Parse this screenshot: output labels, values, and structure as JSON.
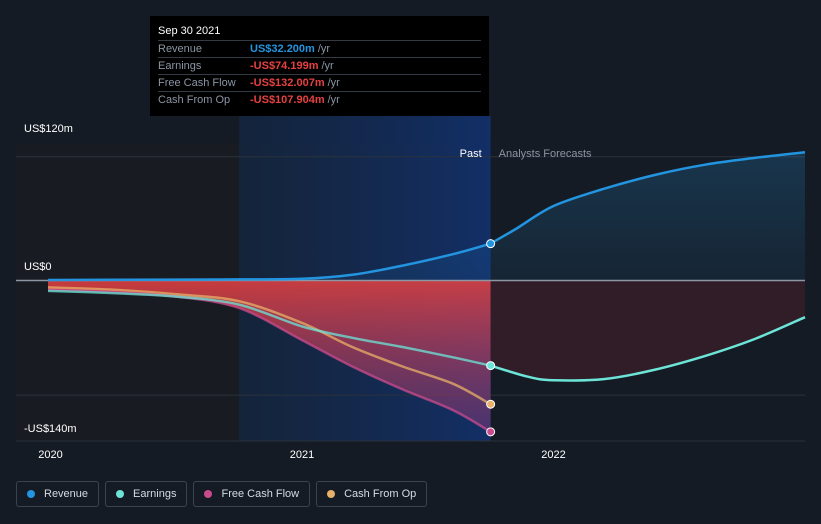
{
  "tooltip": {
    "date": "Sep 30 2021",
    "rows": [
      {
        "label": "Revenue",
        "value": "US$32.200m",
        "unit": "/yr",
        "color": "#2394df"
      },
      {
        "label": "Earnings",
        "value": "-US$74.199m",
        "unit": "/yr",
        "color": "#e64141"
      },
      {
        "label": "Free Cash Flow",
        "value": "-US$132.007m",
        "unit": "/yr",
        "color": "#e64141"
      },
      {
        "label": "Cash From Op",
        "value": "-US$107.904m",
        "unit": "/yr",
        "color": "#e64141"
      }
    ]
  },
  "axis": {
    "top_label": "US$120m",
    "zero_label": "US$0",
    "bottom_label": "-US$140m"
  },
  "sections": {
    "past": "Past",
    "forecast": "Analysts Forecasts"
  },
  "legend": [
    {
      "label": "Revenue",
      "color": "#2394df"
    },
    {
      "label": "Earnings",
      "color": "#6ce5d8"
    },
    {
      "label": "Free Cash Flow",
      "color": "#c94b8e"
    },
    {
      "label": "Cash From Op",
      "color": "#e8b068"
    }
  ],
  "chart_data": {
    "type": "line",
    "title": "",
    "xlabel": "",
    "ylabel": "",
    "x_ticks": [
      "2020",
      "2021",
      "2022"
    ],
    "x_range": [
      2019.99,
      2023.0
    ],
    "ylim": [
      -140,
      120
    ],
    "past_end_x": 2021.75,
    "highlight_start_x": 2020.75,
    "series": [
      {
        "name": "Revenue",
        "color": "#2394df",
        "forecast": true,
        "points": [
          [
            2019.99,
            0.5
          ],
          [
            2020.5,
            0.8
          ],
          [
            2020.75,
            1
          ],
          [
            2021.0,
            1.5
          ],
          [
            2021.2,
            5
          ],
          [
            2021.4,
            13
          ],
          [
            2021.6,
            23
          ],
          [
            2021.75,
            32.2
          ],
          [
            2021.85,
            45
          ],
          [
            2022.0,
            65
          ],
          [
            2022.2,
            80
          ],
          [
            2022.4,
            92
          ],
          [
            2022.6,
            101
          ],
          [
            2022.8,
            107
          ],
          [
            2023.0,
            112
          ]
        ]
      },
      {
        "name": "Earnings",
        "color": "#6ce5d8",
        "forecast": true,
        "points": [
          [
            2019.99,
            -9
          ],
          [
            2020.25,
            -11
          ],
          [
            2020.5,
            -14
          ],
          [
            2020.75,
            -21
          ],
          [
            2021.0,
            -40
          ],
          [
            2021.2,
            -50
          ],
          [
            2021.4,
            -58
          ],
          [
            2021.6,
            -67
          ],
          [
            2021.75,
            -74.2
          ],
          [
            2021.9,
            -84
          ],
          [
            2022.0,
            -87
          ],
          [
            2022.2,
            -86
          ],
          [
            2022.4,
            -78
          ],
          [
            2022.6,
            -66
          ],
          [
            2022.8,
            -51
          ],
          [
            2023.0,
            -32
          ]
        ]
      },
      {
        "name": "Free Cash Flow",
        "color": "#c94b8e",
        "forecast": false,
        "points": [
          [
            2019.99,
            -8
          ],
          [
            2020.25,
            -10
          ],
          [
            2020.5,
            -14
          ],
          [
            2020.75,
            -24
          ],
          [
            2021.0,
            -52
          ],
          [
            2021.2,
            -75
          ],
          [
            2021.4,
            -95
          ],
          [
            2021.6,
            -113
          ],
          [
            2021.75,
            -132
          ]
        ]
      },
      {
        "name": "Cash From Op",
        "color": "#e8b068",
        "forecast": false,
        "points": [
          [
            2019.99,
            -6
          ],
          [
            2020.25,
            -8
          ],
          [
            2020.5,
            -12
          ],
          [
            2020.75,
            -18
          ],
          [
            2021.0,
            -37
          ],
          [
            2021.2,
            -58
          ],
          [
            2021.4,
            -75
          ],
          [
            2021.6,
            -90
          ],
          [
            2021.75,
            -107.9
          ]
        ]
      }
    ]
  }
}
